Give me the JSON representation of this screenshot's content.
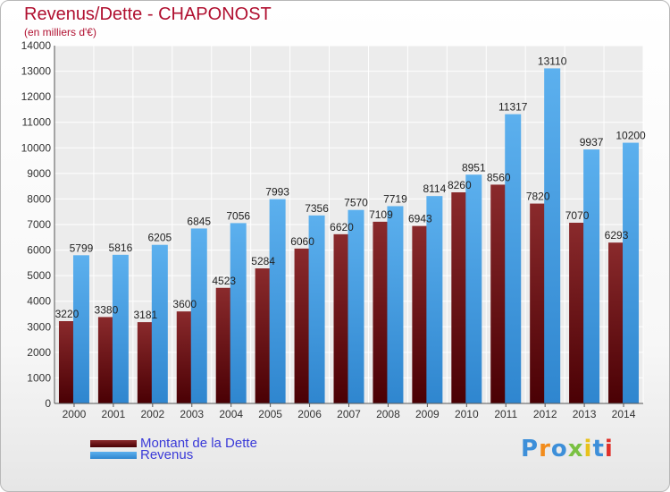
{
  "header": {
    "title": "Revenus/Dette - CHAPONOST",
    "subtitle": "(en milliers d'€)"
  },
  "legend": {
    "items": [
      {
        "label": "Montant de la Dette",
        "color": "#6b0f12"
      },
      {
        "label": "Revenus",
        "color": "#3d9ce4"
      }
    ]
  },
  "logo": {
    "text": "Proxiti",
    "letters": [
      {
        "ch": "P",
        "color": "#3d8fd9"
      },
      {
        "ch": "r",
        "color": "#f28c1c"
      },
      {
        "ch": "o",
        "color": "#3d8fd9"
      },
      {
        "ch": "x",
        "color": "#7ac142"
      },
      {
        "ch": "i",
        "color": "#e8c21c"
      },
      {
        "ch": "t",
        "color": "#3d8fd9"
      },
      {
        "ch": "i",
        "color": "#e0302a"
      }
    ]
  },
  "chart_data": {
    "type": "bar",
    "title": "Revenus/Dette - CHAPONOST",
    "subtitle": "(en milliers d'€)",
    "categories": [
      "2000",
      "2001",
      "2002",
      "2003",
      "2004",
      "2005",
      "2006",
      "2007",
      "2008",
      "2009",
      "2010",
      "2011",
      "2012",
      "2013",
      "2014"
    ],
    "series": [
      {
        "name": "Montant de la Dette",
        "color": "#6b0f12",
        "values": [
          3220,
          3380,
          3181,
          3600,
          4523,
          5284,
          6060,
          6620,
          7109,
          6943,
          8260,
          8560,
          7820,
          7070,
          6293
        ],
        "labels": [
          "3220",
          "3380",
          "3181",
          "3600",
          "4523",
          "5284",
          "6060",
          "6620",
          "7109",
          "6943",
          "8260",
          "8560",
          "7820",
          "7070",
          "6293"
        ]
      },
      {
        "name": "Revenus",
        "color": "#3d9ce4",
        "values": [
          5799,
          5816,
          6205,
          6845,
          7056,
          7993,
          7356,
          7570,
          7719,
          8114,
          8951,
          11317,
          13110,
          9937,
          10200
        ],
        "labels": [
          "5799",
          "5816",
          "6205",
          "6845",
          "7056",
          "7993",
          "7356",
          "7570",
          "7719",
          "8114",
          "8951",
          "11317",
          "13110",
          "9937",
          "10200"
        ]
      }
    ],
    "ylim": [
      0,
      14000
    ],
    "yticks": [
      0,
      1000,
      2000,
      3000,
      4000,
      5000,
      6000,
      7000,
      8000,
      9000,
      10000,
      11000,
      12000,
      13000,
      14000
    ],
    "grid": true,
    "legend_position": "bottom-left"
  }
}
